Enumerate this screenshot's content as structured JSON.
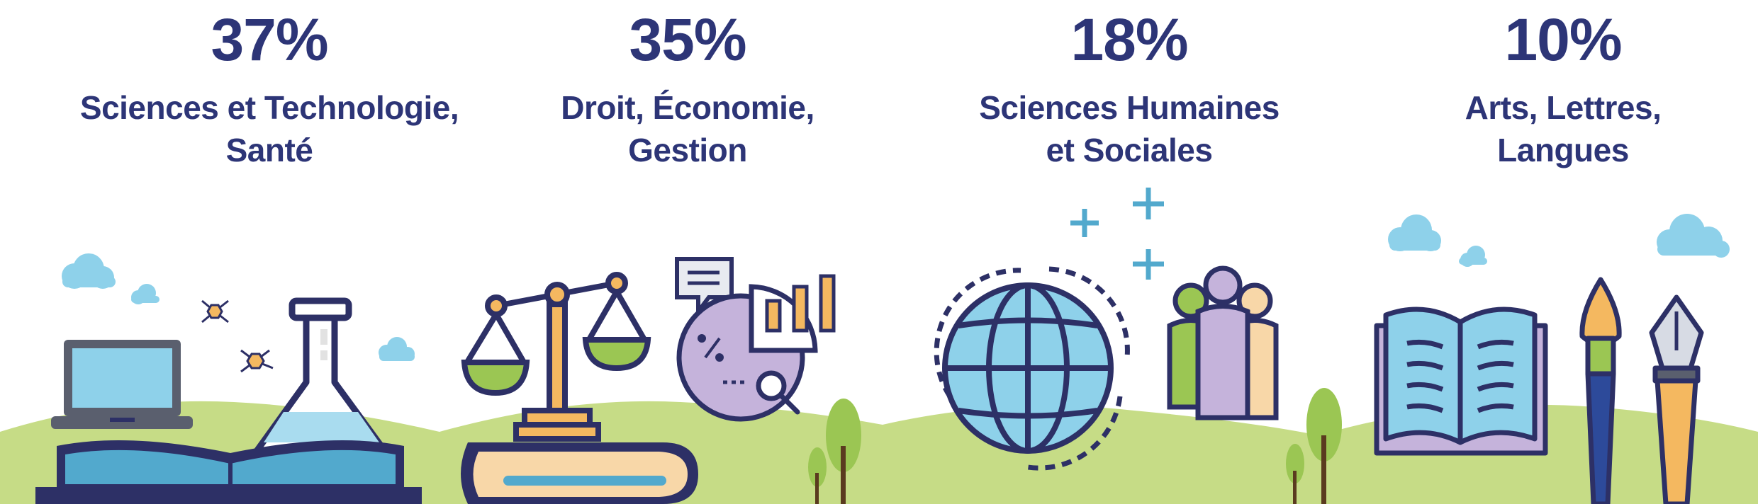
{
  "categories": [
    {
      "percent": "37%",
      "label_lines": [
        "Sciences et Technologie,",
        "Santé"
      ]
    },
    {
      "percent": "35%",
      "label_lines": [
        "Droit, Économie,",
        "Gestion"
      ]
    },
    {
      "percent": "18%",
      "label_lines": [
        "Sciences Humaines",
        "et Sociales"
      ]
    },
    {
      "percent": "10%",
      "label_lines": [
        "Arts, Lettres,",
        "Langues"
      ]
    }
  ],
  "colors": {
    "text": "#2d3577",
    "outline": "#2d3066",
    "hills": "#c6dc86",
    "hills_dark": "#a9c762",
    "sky_blue": "#8ed1ea",
    "book_blue": "#52a9cd",
    "purple": "#c5b3db",
    "orange": "#f4b860",
    "green": "#9bc653",
    "peach": "#f8d7a8"
  },
  "icons": {
    "science": [
      "cloud-icon",
      "laptop-icon",
      "molecule-icon",
      "flask-icon",
      "open-book-icon"
    ],
    "law": [
      "scale-icon",
      "book-stack-icon",
      "speech-bubble-icon",
      "pie-chart-icon",
      "bar-chart-icon",
      "magnifier-icon",
      "tree-icon"
    ],
    "humanities": [
      "globe-icon",
      "rotate-arrows-icon",
      "sparkle-icon",
      "people-group-icon",
      "tree-icon"
    ],
    "arts": [
      "cloud-icon",
      "open-book-icon",
      "paintbrush-icon",
      "fountain-pen-icon"
    ]
  }
}
